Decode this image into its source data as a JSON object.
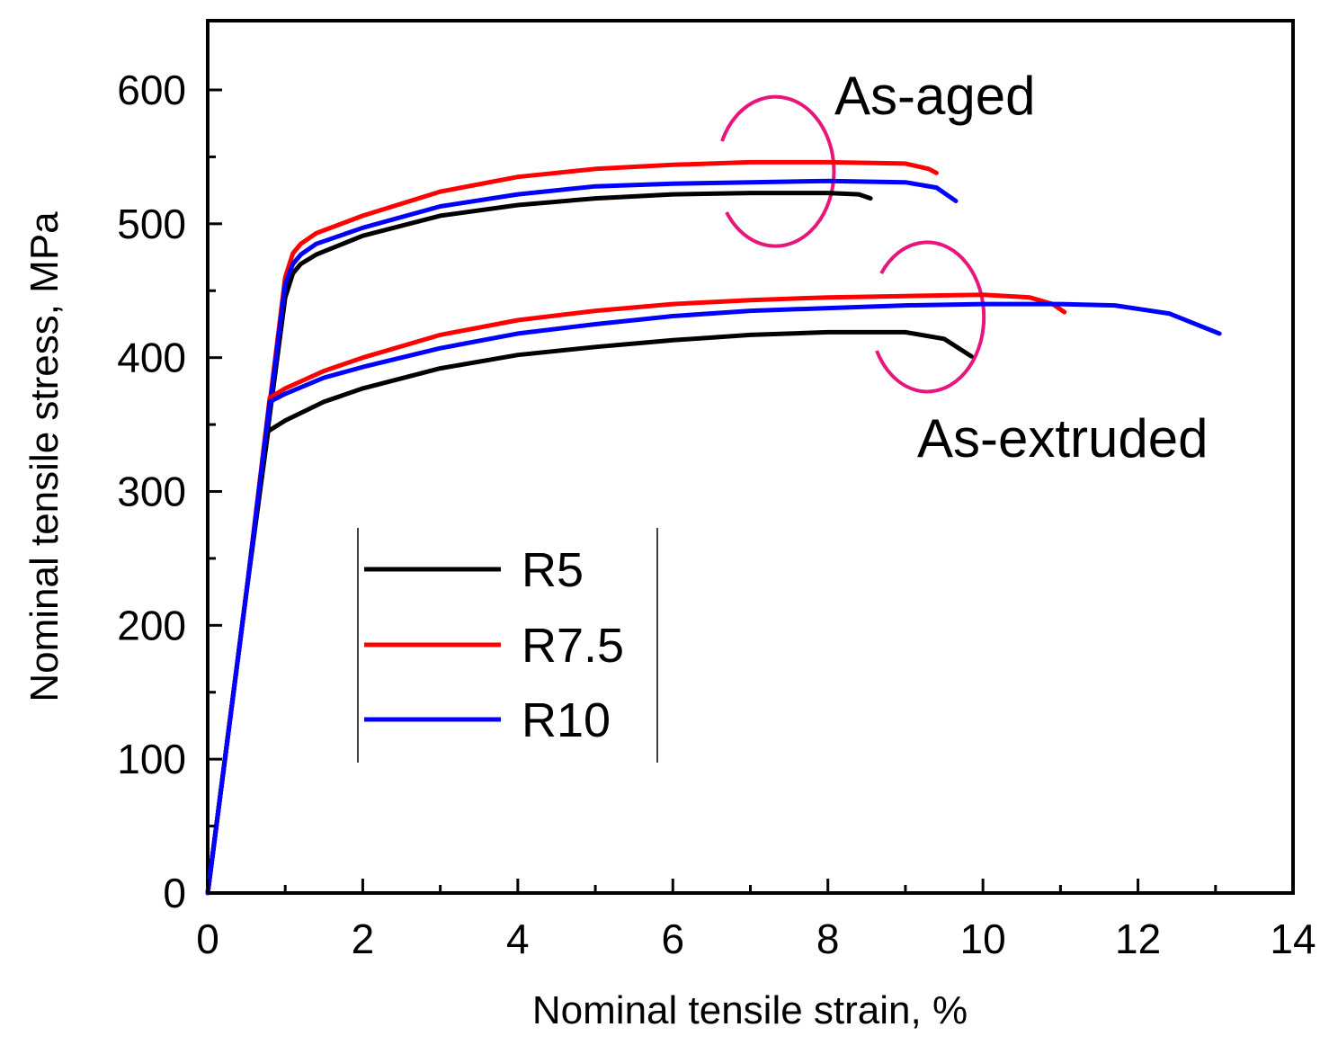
{
  "chart_data": {
    "type": "line",
    "title": "",
    "xlabel": "Nominal tensile strain, %",
    "ylabel": "Nominal tensile stress, MPa",
    "xlim": [
      0,
      14
    ],
    "ylim": [
      0,
      650
    ],
    "x_ticks": [
      0,
      2,
      4,
      6,
      8,
      10,
      12,
      14
    ],
    "y_ticks": [
      0,
      100,
      200,
      300,
      400,
      500,
      600
    ],
    "grid": false,
    "legend": {
      "position": "center-left",
      "entries": [
        {
          "name": "R5",
          "color": "#000000"
        },
        {
          "name": "R7.5",
          "color": "#ff0000"
        },
        {
          "name": "R10",
          "color": "#0000ff"
        }
      ]
    },
    "annotations": [
      {
        "text": "As-aged"
      },
      {
        "text": "As-extruded"
      }
    ],
    "highlight_color": "#e8157d",
    "series": [
      {
        "name": "R5",
        "condition": "As-aged",
        "color": "#000000",
        "x": [
          0,
          0.5,
          1.0,
          1.1,
          1.2,
          1.4,
          2,
          3,
          4,
          5,
          6,
          7,
          8,
          8.4,
          8.55
        ],
        "y": [
          0,
          225,
          445,
          463,
          470,
          477,
          491,
          506,
          514,
          519,
          522,
          523,
          523,
          522,
          519
        ]
      },
      {
        "name": "R7.5",
        "condition": "As-aged",
        "color": "#ff0000",
        "x": [
          0,
          0.5,
          1.0,
          1.1,
          1.2,
          1.4,
          2,
          3,
          4,
          5,
          6,
          7,
          8,
          9,
          9.3,
          9.4
        ],
        "y": [
          0,
          225,
          460,
          478,
          485,
          493,
          506,
          524,
          535,
          541,
          544,
          546,
          546,
          545,
          541,
          538
        ]
      },
      {
        "name": "R10",
        "condition": "As-aged",
        "color": "#0000ff",
        "x": [
          0,
          0.5,
          1.0,
          1.1,
          1.2,
          1.4,
          2,
          3,
          4,
          5,
          6,
          7,
          8,
          9,
          9.4,
          9.65
        ],
        "y": [
          0,
          225,
          455,
          470,
          477,
          485,
          497,
          513,
          522,
          528,
          530,
          531,
          532,
          531,
          527,
          517
        ]
      },
      {
        "name": "R5",
        "condition": "As-extruded",
        "color": "#000000",
        "x": [
          0,
          0.5,
          0.78,
          1.0,
          1.5,
          2,
          3,
          4,
          5,
          6,
          7,
          8,
          9,
          9.5,
          9.85
        ],
        "y": [
          0,
          225,
          345,
          353,
          367,
          377,
          392,
          402,
          408,
          413,
          417,
          419,
          419,
          414,
          401
        ]
      },
      {
        "name": "R7.5",
        "condition": "As-extruded",
        "color": "#ff0000",
        "x": [
          0,
          0.5,
          0.8,
          1.0,
          1.5,
          2,
          3,
          4,
          5,
          6,
          7,
          8,
          9,
          10,
          10.6,
          10.9,
          11.05
        ],
        "y": [
          0,
          225,
          370,
          377,
          390,
          400,
          417,
          428,
          435,
          440,
          443,
          445,
          446,
          447,
          445,
          440,
          434
        ]
      },
      {
        "name": "R10",
        "condition": "As-extruded",
        "color": "#0000ff",
        "x": [
          0,
          0.5,
          0.8,
          1.0,
          1.5,
          2,
          3,
          4,
          5,
          6,
          7,
          8,
          9,
          10,
          11,
          11.7,
          12.4,
          13.05
        ],
        "y": [
          0,
          225,
          367,
          373,
          385,
          393,
          407,
          418,
          425,
          431,
          435,
          437,
          439,
          440,
          440,
          439,
          433,
          418
        ]
      }
    ]
  }
}
